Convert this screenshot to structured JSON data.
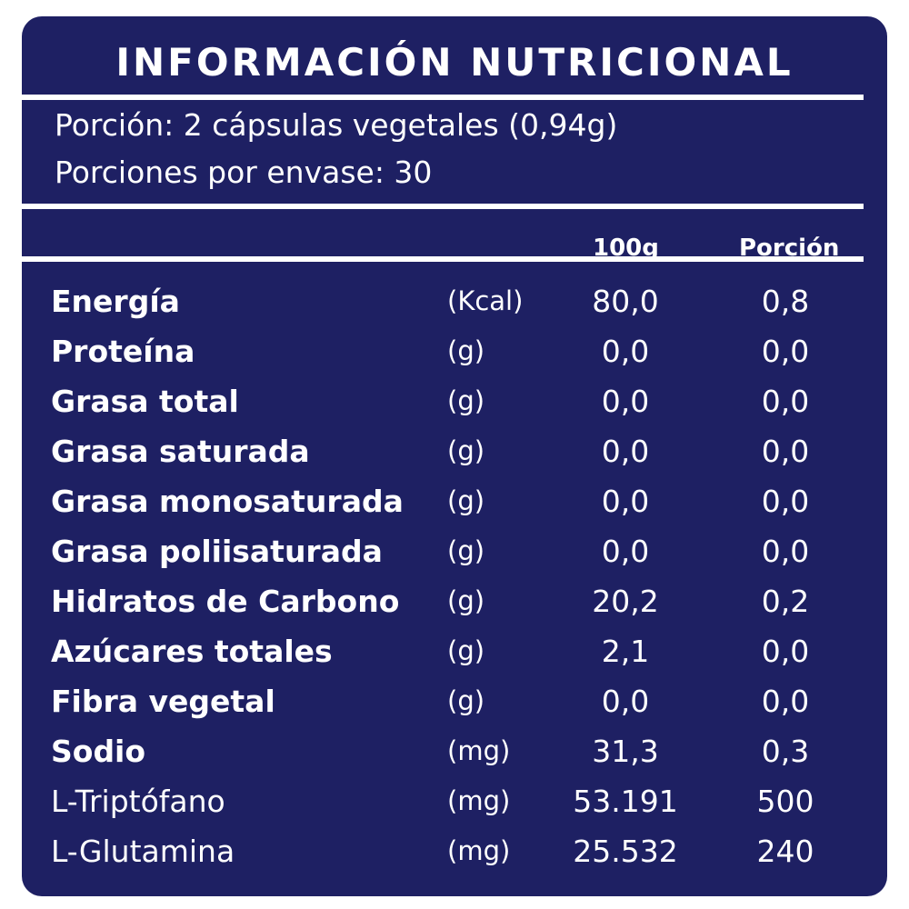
{
  "title": "INFORMACIÓN NUTRICIONAL",
  "serving_size": "Porción: 2 cápsulas vegetales (0,94g)",
  "servings_per_container": "Porciones por envase: 30",
  "columns": {
    "per_100g": "100g",
    "per_serving": "Porción"
  },
  "colors": {
    "background": "#1e2063",
    "text": "#ffffff"
  },
  "rows": [
    {
      "name": "Energía",
      "unit": "(Kcal)",
      "per_100g": "80,0",
      "per_serving": "0,8"
    },
    {
      "name": "Proteína",
      "unit": "(g)",
      "per_100g": "0,0",
      "per_serving": "0,0"
    },
    {
      "name": "Grasa total",
      "unit": "(g)",
      "per_100g": "0,0",
      "per_serving": "0,0"
    },
    {
      "name": "Grasa saturada",
      "unit": "(g)",
      "per_100g": "0,0",
      "per_serving": "0,0"
    },
    {
      "name": "Grasa monosaturada",
      "unit": "(g)",
      "per_100g": "0,0",
      "per_serving": "0,0"
    },
    {
      "name": "Grasa poliisaturada",
      "unit": "(g)",
      "per_100g": "0,0",
      "per_serving": "0,0"
    },
    {
      "name": "Hidratos de Carbono",
      "unit": "(g)",
      "per_100g": "20,2",
      "per_serving": "0,2"
    },
    {
      "name": "Azúcares totales",
      "unit": "(g)",
      "per_100g": "2,1",
      "per_serving": "0,0"
    },
    {
      "name": "Fibra vegetal",
      "unit": "(g)",
      "per_100g": "0,0",
      "per_serving": "0,0"
    },
    {
      "name": "Sodio",
      "unit": "(mg)",
      "per_100g": "31,3",
      "per_serving": "0,3"
    },
    {
      "name": "L-Triptófano",
      "unit": "(mg)",
      "per_100g": "53.191",
      "per_serving": "500"
    },
    {
      "name": "L-Glutamina",
      "unit": "(mg)",
      "per_100g": "25.532",
      "per_serving": "240"
    }
  ]
}
